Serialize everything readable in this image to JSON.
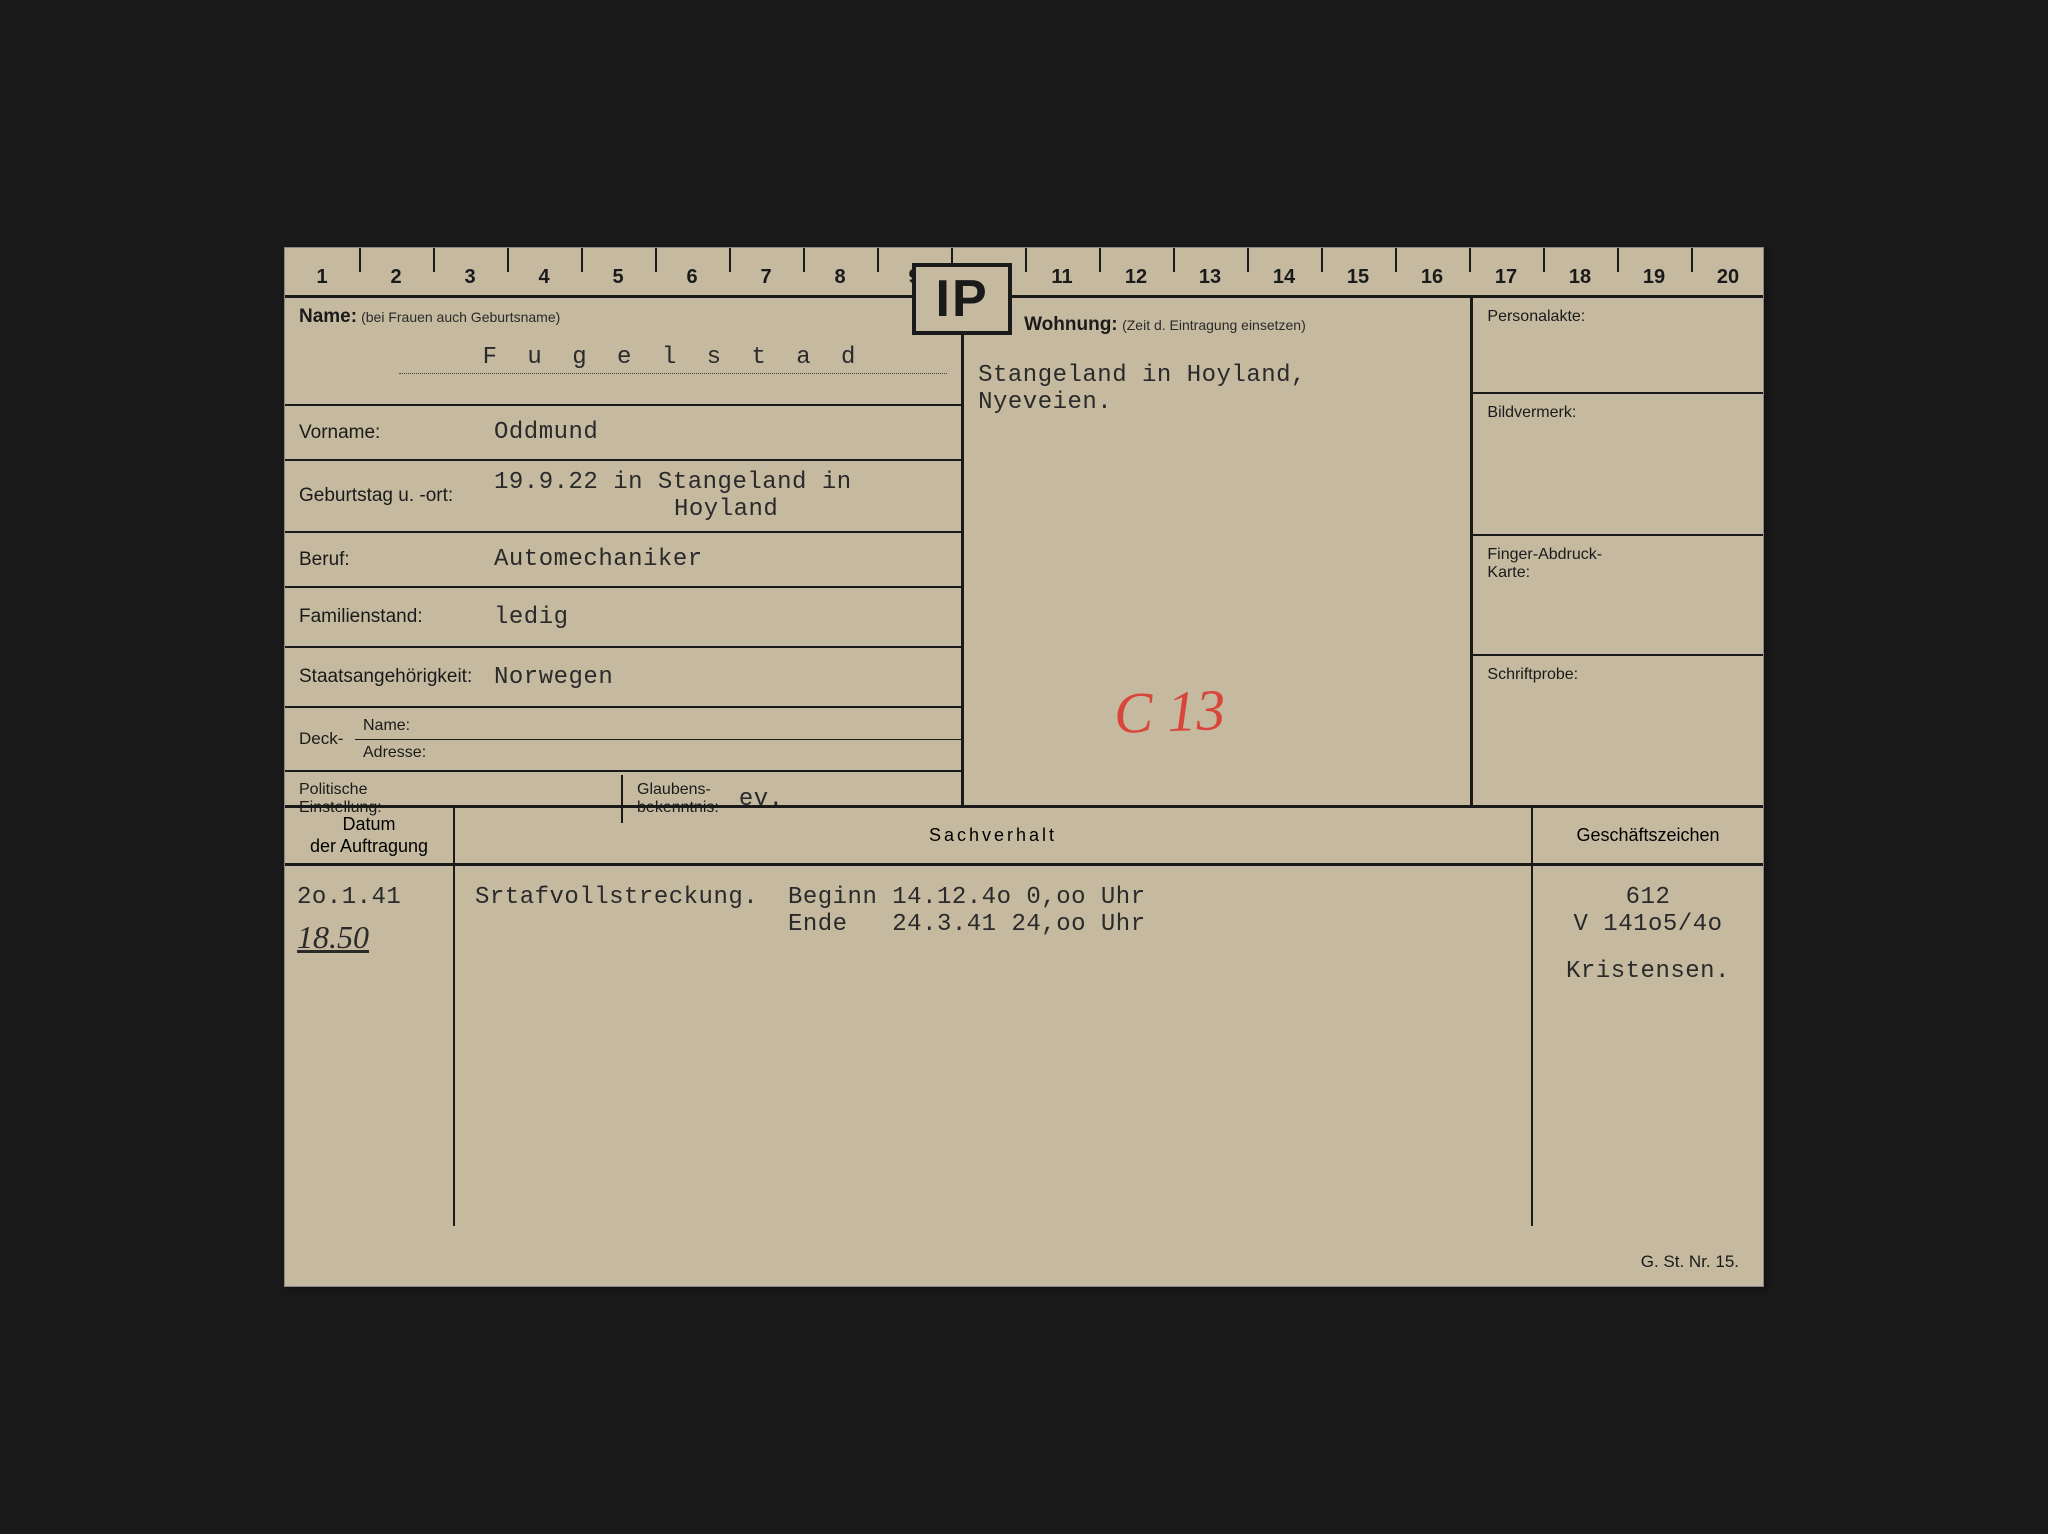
{
  "ruler": {
    "start": 1,
    "end": 20
  },
  "ip_badge": "IP",
  "labels": {
    "name": "Name:",
    "name_sub": "(bei Frauen auch Geburtsname)",
    "vorname": "Vorname:",
    "geburt": "Geburtstag u. -ort:",
    "beruf": "Beruf:",
    "familien": "Familienstand:",
    "staats": "Staatsangehörigkeit:",
    "deck": "Deck-",
    "deck_name": "Name:",
    "deck_adresse": "Adresse:",
    "pol1": "Politische",
    "pol2": "Einstellung:",
    "glaub1": "Glaubens-",
    "glaub2": "bekenntnis:",
    "wohnung": "Wohnung:",
    "wohnung_sub": "(Zeit d. Eintragung einsetzen)",
    "personal": "Personalakte:",
    "bild": "Bildvermerk:",
    "finger1": "Finger-Abdruck-",
    "finger2": "Karte:",
    "schrift": "Schriftprobe:",
    "th_datum1": "Datum",
    "th_datum2": "der Auftragung",
    "th_sach": "Sachverhalt",
    "th_gesch": "Geschäftszeichen"
  },
  "values": {
    "name": "F u g e l s t a d",
    "vorname": "Oddmund",
    "geburt_line1": "19.9.22 in  Stangeland in",
    "geburt_line2": "Hoyland",
    "beruf": "Automechaniker",
    "familien": "ledig",
    "staats": "Norwegen",
    "glaubens": "ev.",
    "wohnung_line1": "Stangeland in Hoyland,",
    "wohnung_line2": "Nyeveien.",
    "red_annotation": "C 13",
    "datum": "2o.1.41",
    "datum_hand": "18.50",
    "sach_line1": "Srtafvollstreckung.  Beginn 14.12.4o 0,oo Uhr",
    "sach_line2": "                     Ende   24.3.41 24,oo Uhr",
    "gesch_line1": "612",
    "gesch_line2": "V 141o5/4o",
    "gesch_line3": "Kristensen."
  },
  "footer": "G. St. Nr. 15.",
  "colors": {
    "card_bg": "#c5baa0",
    "ink": "#1a1a1a",
    "typed": "#2a2a2a",
    "red": "#d8453a",
    "page_bg": "#1a1a1a"
  }
}
